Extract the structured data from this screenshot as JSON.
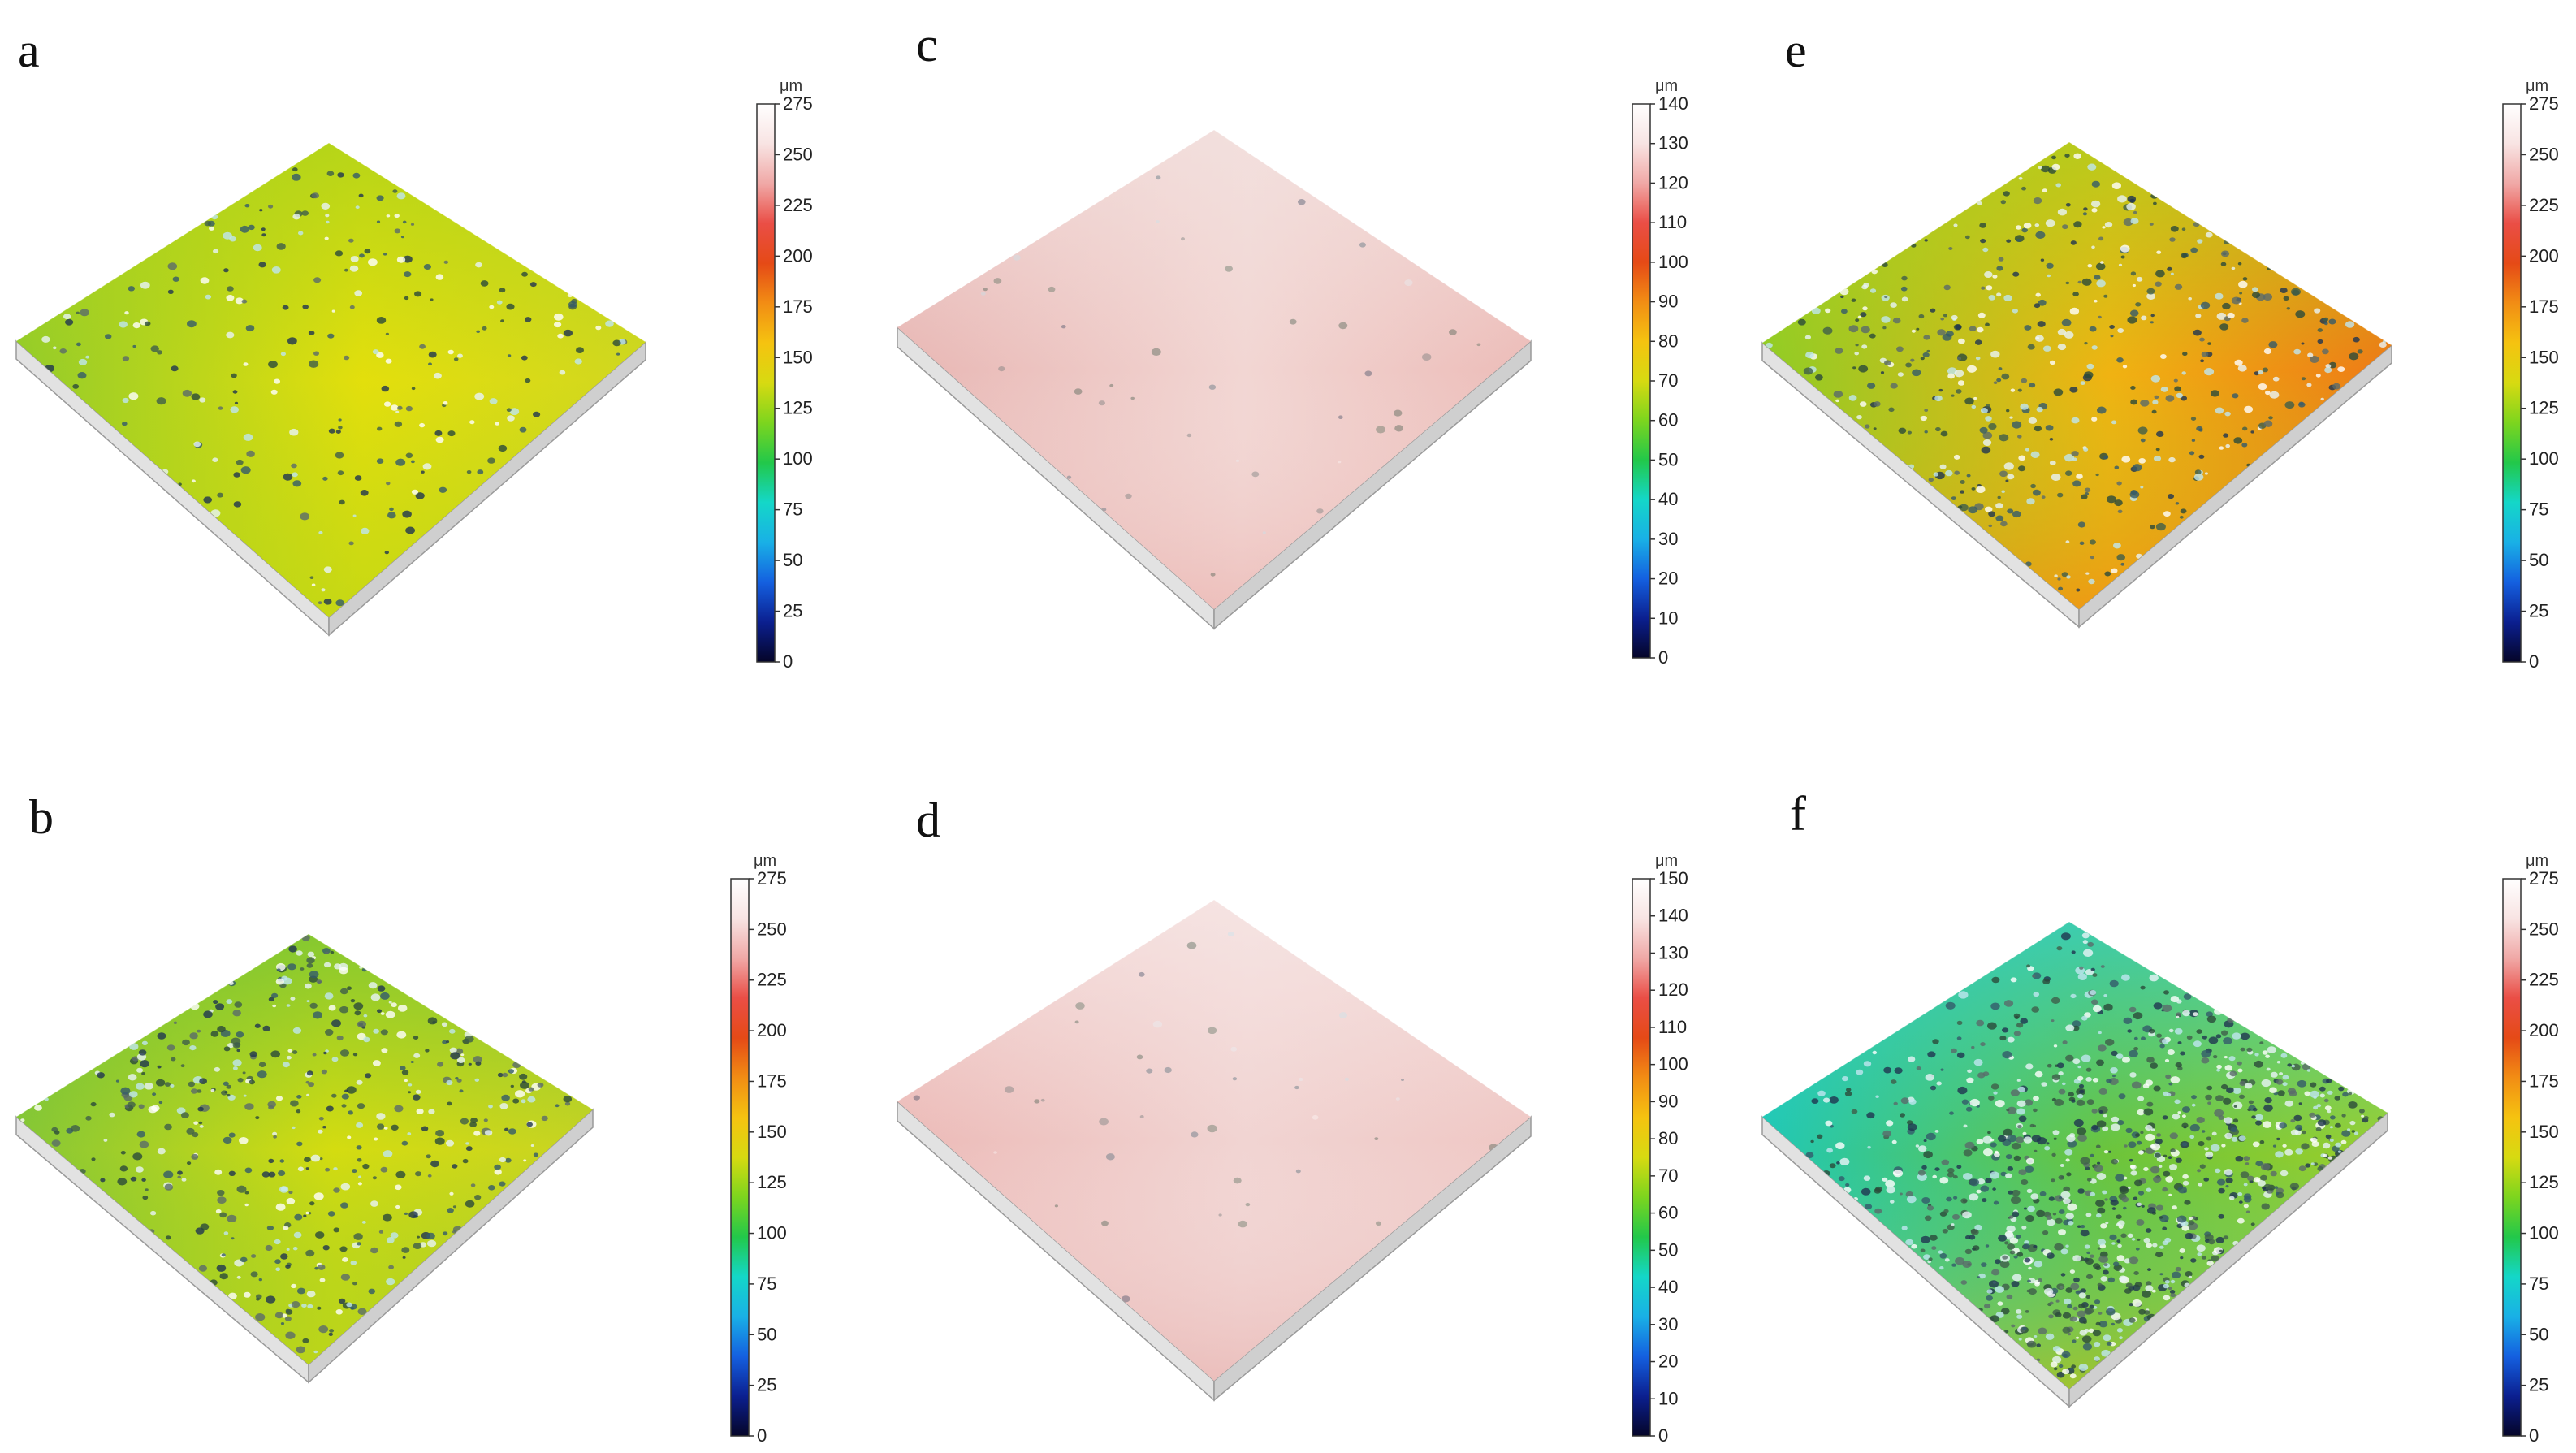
{
  "figure": {
    "panels": [
      {
        "id": "a",
        "letter": "a",
        "surface": {
          "left": "#93cc2a",
          "right": "#d1d720",
          "top": "#a9d21c",
          "bottom": "#b6d418",
          "center": "#e3df0c"
        },
        "defect_density": "low",
        "colorbar": {
          "unit": "μm",
          "min": 0,
          "max": 275,
          "ticks": [
            "0",
            "25",
            "50",
            "75",
            "100",
            "125",
            "150",
            "175",
            "200",
            "225",
            "250",
            "275"
          ]
        }
      },
      {
        "id": "b",
        "letter": "b",
        "surface": {
          "left": "#86c736",
          "right": "#c8d422",
          "top": "#6cc23a",
          "bottom": "#aed11f",
          "center": "#d4dc10"
        },
        "defect_density": "medium",
        "colorbar": {
          "unit": "μm",
          "min": 0,
          "max": 275,
          "ticks": [
            "0",
            "25",
            "50",
            "75",
            "100",
            "125",
            "150",
            "175",
            "200",
            "225",
            "250",
            "275"
          ]
        }
      },
      {
        "id": "c",
        "letter": "c",
        "surface": {
          "left": "#e8b6b3",
          "right": "#ecbcb8",
          "top": "#f3e3e1",
          "bottom": "#eab1ad",
          "center": "#f2d6d3"
        },
        "defect_density": "very-low",
        "colorbar": {
          "unit": "μm",
          "min": 0,
          "max": 140,
          "ticks": [
            "0",
            "10",
            "20",
            "30",
            "40",
            "50",
            "60",
            "70",
            "80",
            "90",
            "100",
            "110",
            "120",
            "130",
            "140"
          ]
        }
      },
      {
        "id": "d",
        "letter": "d",
        "surface": {
          "left": "#ecbab7",
          "right": "#efc7c4",
          "top": "#f7e9e8",
          "bottom": "#e7b1ae",
          "center": "#f1d4d2"
        },
        "defect_density": "very-low",
        "colorbar": {
          "unit": "μm",
          "min": 0,
          "max": 150,
          "ticks": [
            "0",
            "10",
            "20",
            "30",
            "40",
            "50",
            "60",
            "70",
            "80",
            "90",
            "100",
            "110",
            "120",
            "130",
            "140",
            "150"
          ]
        }
      },
      {
        "id": "e",
        "letter": "e",
        "surface": {
          "left": "#8fcc26",
          "right": "#ee7a16",
          "top": "#a8d21e",
          "bottom": "#f08a14",
          "center": "#f0b312"
        },
        "defect_density": "medium",
        "colorbar": {
          "unit": "μm",
          "min": 0,
          "max": 275,
          "ticks": [
            "0",
            "25",
            "50",
            "75",
            "100",
            "125",
            "150",
            "175",
            "200",
            "225",
            "250",
            "275"
          ]
        }
      },
      {
        "id": "f",
        "letter": "f",
        "surface": {
          "left": "#20c8b4",
          "right": "#9ccf2a",
          "top": "#2fcfd3",
          "bottom": "#c9c41e",
          "center": "#6cc43a"
        },
        "defect_density": "high",
        "colorbar": {
          "unit": "μm",
          "min": 0,
          "max": 275,
          "ticks": [
            "0",
            "25",
            "50",
            "75",
            "100",
            "125",
            "150",
            "175",
            "200",
            "225",
            "250",
            "275"
          ]
        }
      }
    ],
    "colormap": [
      "#050528",
      "#0b1f8f",
      "#1460e0",
      "#19b0e6",
      "#14d7c8",
      "#22c84a",
      "#7dd51e",
      "#d7da11",
      "#f5c310",
      "#f28d14",
      "#e54a16",
      "#ea4e46",
      "#f0a8a6",
      "#f8e4e3",
      "#ffffff"
    ]
  }
}
